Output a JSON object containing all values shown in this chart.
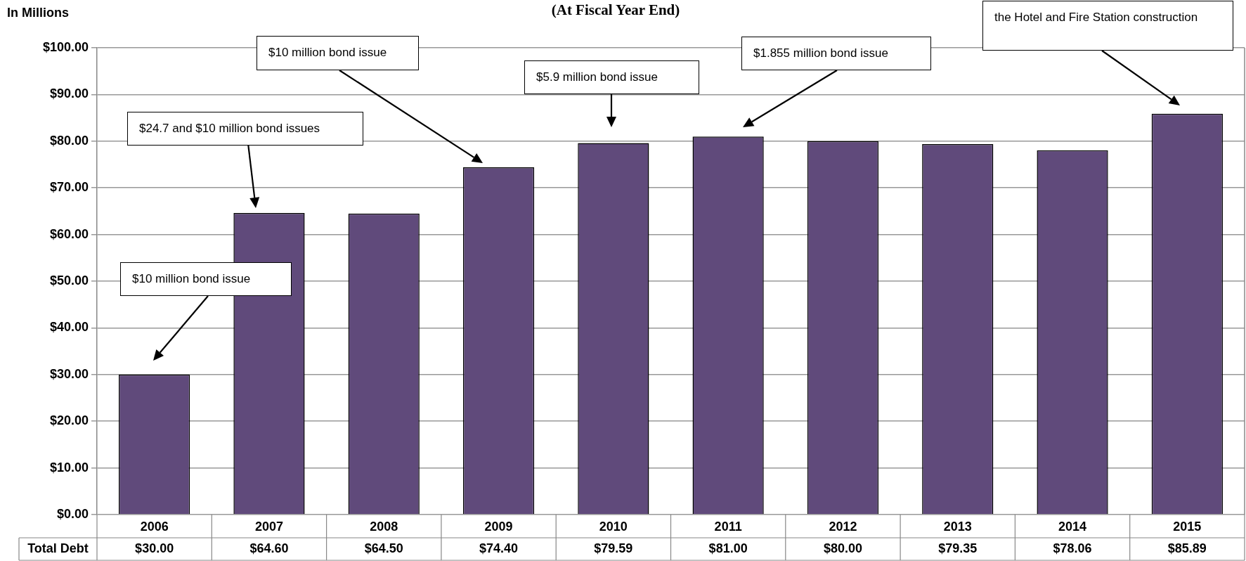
{
  "chart_data": {
    "type": "bar",
    "title": "(At Fiscal Year End)",
    "ylabel": "In Millions",
    "categories": [
      "2006",
      "2007",
      "2008",
      "2009",
      "2010",
      "2011",
      "2012",
      "2013",
      "2014",
      "2015"
    ],
    "series": [
      {
        "name": "Total Debt",
        "color": "#604a7b",
        "values": [
          30.0,
          64.6,
          64.5,
          74.4,
          79.59,
          81.0,
          80.0,
          79.35,
          78.06,
          85.89
        ]
      }
    ],
    "value_labels": [
      "$30.00",
      "$64.60",
      "$64.50",
      "$74.40",
      "$79.59",
      "$81.00",
      "$80.00",
      "$79.35",
      "$78.06",
      "$85.89"
    ],
    "ylim": [
      0,
      100
    ],
    "yticks": [
      {
        "value": 0,
        "label": "$0.00"
      },
      {
        "value": 10,
        "label": "$10.00"
      },
      {
        "value": 20,
        "label": "$20.00"
      },
      {
        "value": 30,
        "label": "$30.00"
      },
      {
        "value": 40,
        "label": "$40.00"
      },
      {
        "value": 50,
        "label": "$50.00"
      },
      {
        "value": 60,
        "label": "$60.00"
      },
      {
        "value": 70,
        "label": "$70.00"
      },
      {
        "value": 80,
        "label": "$80.00"
      },
      {
        "value": 90,
        "label": "$90.00"
      },
      {
        "value": 100,
        "label": "$100.00"
      }
    ],
    "grid": "y",
    "legend": false,
    "annotations": [
      "$10 million bond issue",
      "$24.7 and $10 million bond issues",
      "$10 million bond issue",
      "$5.9 million bond issue",
      "$1.855 million bond issue",
      "the Hotel and Fire Station construction"
    ]
  }
}
